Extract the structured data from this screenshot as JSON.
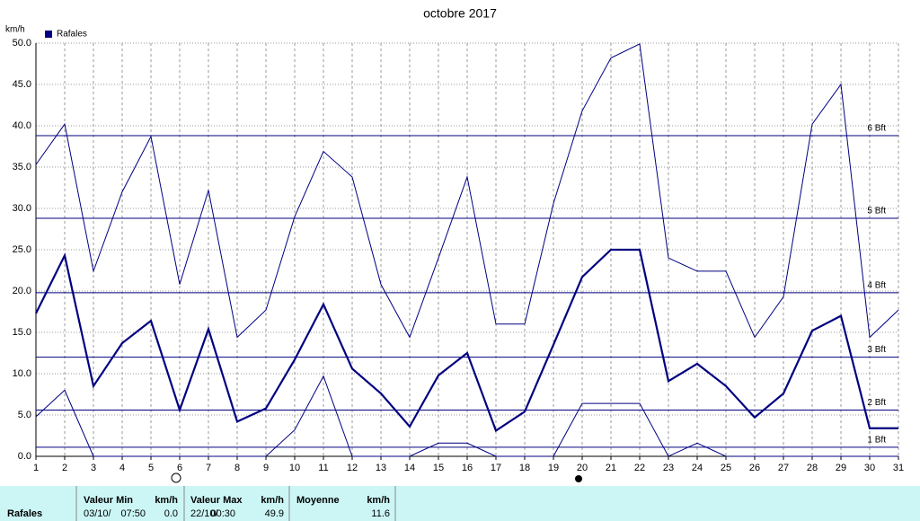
{
  "chart_data": {
    "type": "line",
    "title": "octobre 2017",
    "y_label": "km/h",
    "x": [
      1,
      2,
      3,
      4,
      5,
      6,
      7,
      8,
      9,
      10,
      11,
      12,
      13,
      14,
      15,
      16,
      17,
      18,
      19,
      20,
      21,
      22,
      23,
      24,
      25,
      26,
      27,
      28,
      29,
      30,
      31
    ],
    "xlim": [
      1,
      31
    ],
    "xticks": [
      1,
      2,
      3,
      4,
      5,
      6,
      7,
      8,
      9,
      10,
      11,
      12,
      13,
      14,
      15,
      16,
      17,
      18,
      19,
      20,
      21,
      22,
      23,
      24,
      25,
      26,
      27,
      28,
      29,
      30,
      31
    ],
    "ylim": [
      0,
      50
    ],
    "yticks": [
      {
        "value": 0,
        "label": "0.0"
      },
      {
        "value": 5,
        "label": "5.0"
      },
      {
        "value": 10,
        "label": "10.0"
      },
      {
        "value": 15,
        "label": "15.0"
      },
      {
        "value": 20,
        "label": "20.0"
      },
      {
        "value": 25,
        "label": "25.0"
      },
      {
        "value": 30,
        "label": "30.0"
      },
      {
        "value": 35,
        "label": "35.0"
      },
      {
        "value": 40,
        "label": "40.0"
      },
      {
        "value": 45,
        "label": "45.0"
      },
      {
        "value": 50,
        "label": "50.0"
      }
    ],
    "grid": true,
    "legend": "top-left",
    "series": [
      {
        "color": "#000080",
        "line_width": 1,
        "values": [
          35.3,
          40.2,
          22.4,
          32,
          38.7,
          20.8,
          32.2,
          14.4,
          17.7,
          29,
          36.9,
          33.8,
          20.8,
          14.4,
          24,
          33.8,
          16,
          16,
          30.6,
          41.8,
          48.2,
          49.9,
          24,
          22.4,
          22.4,
          14.4,
          19.3,
          40.2,
          45,
          14.4,
          17.7
        ]
      },
      {
        "name": "Rafales",
        "color": "#000080",
        "line_width": 2.2,
        "values": [
          17.3,
          24.3,
          8.5,
          13.7,
          16.4,
          5.6,
          15.4,
          4.2,
          5.8,
          11.7,
          18.4,
          10.6,
          7.6,
          3.6,
          9.8,
          12.5,
          3.1,
          5.4,
          13.5,
          21.7,
          25,
          25,
          9.1,
          11.2,
          8.5,
          4.7,
          7.6,
          15.2,
          17,
          3.4,
          3.4
        ]
      },
      {
        "color": "#000080",
        "line_width": 1,
        "values": [
          4.8,
          8,
          0,
          0,
          0,
          0,
          0,
          0,
          0,
          3.2,
          9.7,
          0,
          0,
          0,
          1.6,
          1.6,
          0,
          0,
          0,
          6.4,
          6.4,
          6.4,
          0,
          1.6,
          0,
          0,
          0,
          0,
          0,
          0,
          0
        ]
      }
    ],
    "reference_lines": [
      {
        "value": 1.1,
        "label": "1 Bft"
      },
      {
        "value": 5.6,
        "label": "2 Bft"
      },
      {
        "value": 12,
        "label": "3 Bft"
      },
      {
        "value": 19.8,
        "label": "4 Bft"
      },
      {
        "value": 28.8,
        "label": "5 Bft"
      },
      {
        "value": 38.8,
        "label": "6 Bft"
      }
    ],
    "reference_color": "#000080"
  },
  "table": {
    "headers": [
      "Valeur Min",
      "km/h",
      "Valeur Max",
      "km/h",
      "Moyenne",
      "km/h"
    ],
    "rows": [
      [
        "Rafales",
        "03/10/",
        "07:50",
        "0.0",
        "22/10/",
        "00:30",
        "49.9",
        "11.6"
      ]
    ]
  }
}
